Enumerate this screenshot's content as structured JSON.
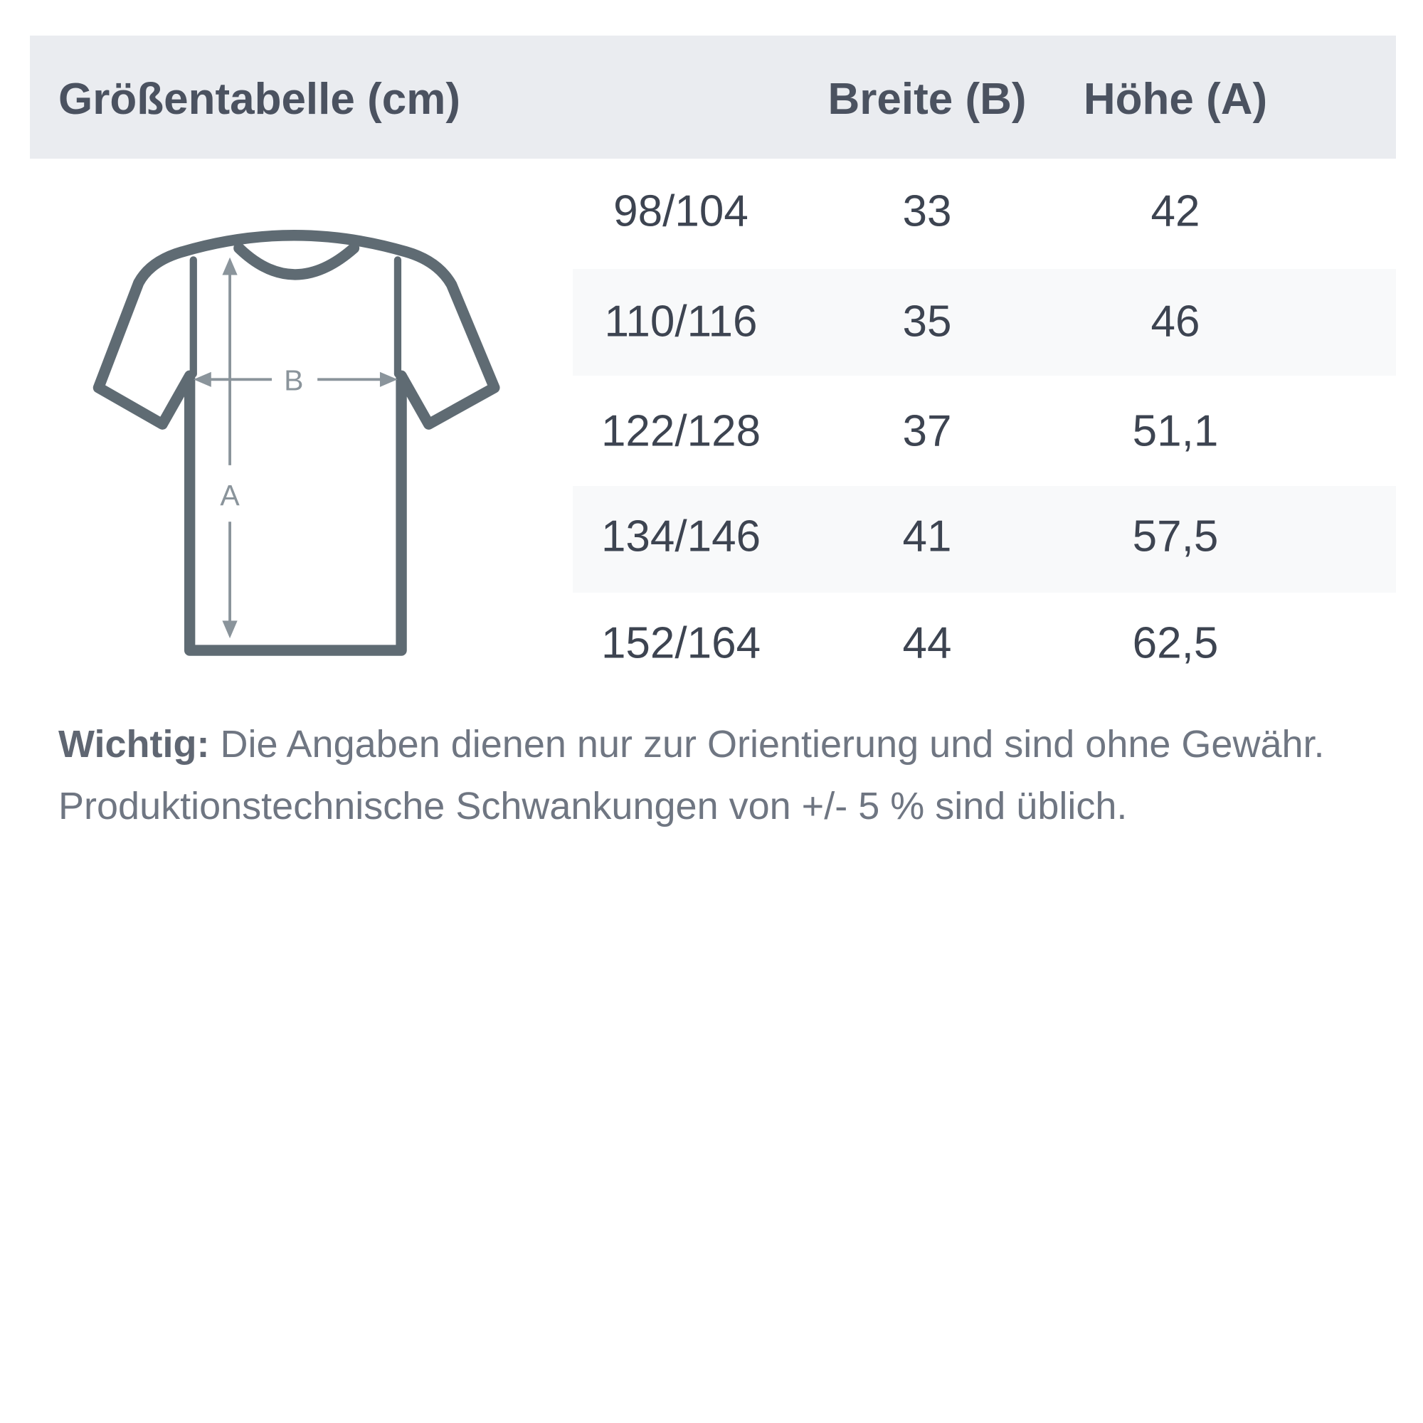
{
  "header": {
    "title": "Größentabelle (cm)",
    "columns": [
      "Breite (B)",
      "Höhe (A)"
    ]
  },
  "diagram": {
    "width_label": "B",
    "height_label": "A"
  },
  "table": {
    "rows": [
      [
        "98/104",
        "33",
        "42"
      ],
      [
        "110/116",
        "35",
        "46"
      ],
      [
        "122/128",
        "37",
        "51,1"
      ],
      [
        "134/146",
        "41",
        "57,5"
      ],
      [
        "152/164",
        "44",
        "62,5"
      ]
    ]
  },
  "note": {
    "label": "Wichtig:",
    "line1": "Die Angaben dienen nur zur Orientierung und sind ohne Gewähr.",
    "line2": "Produktionstechnische Schwankungen von +/- 5 % sind üblich."
  }
}
